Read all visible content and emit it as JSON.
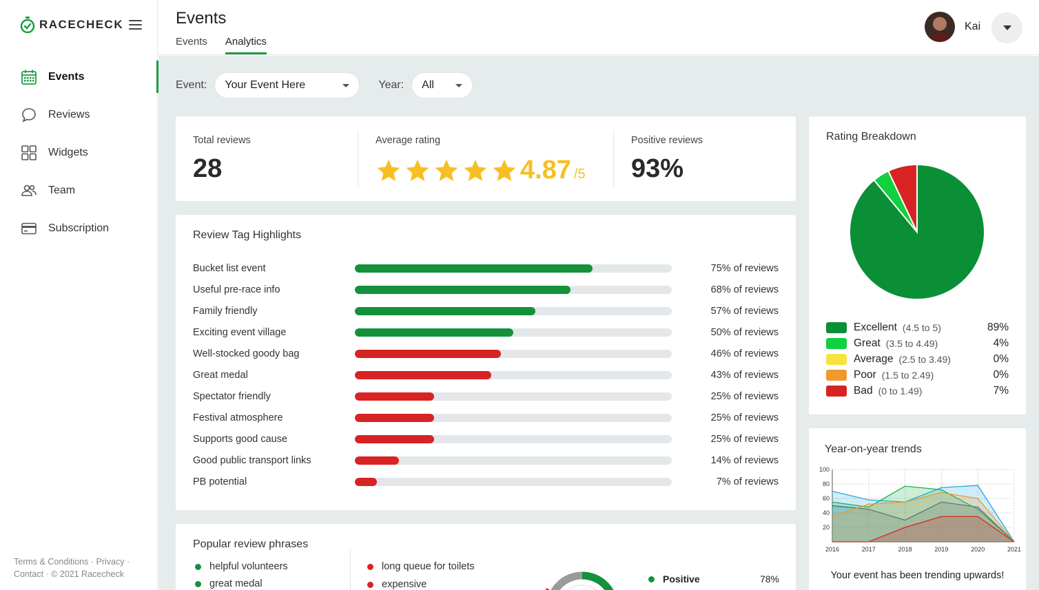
{
  "brand": {
    "name": "RACECHECK",
    "accent": "#1a9d43"
  },
  "sidebar": {
    "items": [
      {
        "label": "Events",
        "icon": "calendar-icon",
        "active": true
      },
      {
        "label": "Reviews",
        "icon": "chat-bubble-icon",
        "active": false
      },
      {
        "label": "Widgets",
        "icon": "grid-icon",
        "active": false
      },
      {
        "label": "Team",
        "icon": "people-icon",
        "active": false
      },
      {
        "label": "Subscription",
        "icon": "credit-card-icon",
        "active": false
      }
    ],
    "footer": {
      "terms": "Terms & Conditions",
      "privacy": "Privacy",
      "contact": "Contact",
      "copyright": "© 2021 Racecheck"
    }
  },
  "header": {
    "title": "Events",
    "tabs": [
      {
        "label": "Events",
        "active": false
      },
      {
        "label": "Analytics",
        "active": true
      }
    ],
    "user": {
      "name": "Kai"
    }
  },
  "filters": {
    "event_label": "Event:",
    "event_value": "Your Event Here",
    "year_label": "Year:",
    "year_value": "All"
  },
  "stats": {
    "total_reviews_label": "Total reviews",
    "total_reviews": "28",
    "average_rating_label": "Average rating",
    "average_rating": "4.87",
    "rating_scale": "/5",
    "stars": 5,
    "positive_reviews_label": "Positive reviews",
    "positive_reviews": "93%"
  },
  "tag_highlights": {
    "title": "Review Tag Highlights",
    "items": [
      {
        "label": "Bucket list event",
        "pct": 75,
        "text": "75% of reviews",
        "sentiment": "positive"
      },
      {
        "label": "Useful pre-race info",
        "pct": 68,
        "text": "68% of reviews",
        "sentiment": "positive"
      },
      {
        "label": "Family friendly",
        "pct": 57,
        "text": "57% of reviews",
        "sentiment": "positive"
      },
      {
        "label": "Exciting event village",
        "pct": 50,
        "text": "50% of reviews",
        "sentiment": "positive"
      },
      {
        "label": "Well-stocked goody bag",
        "pct": 46,
        "text": "46% of reviews",
        "sentiment": "negative"
      },
      {
        "label": "Great medal",
        "pct": 43,
        "text": "43% of reviews",
        "sentiment": "negative"
      },
      {
        "label": "Spectator friendly",
        "pct": 25,
        "text": "25% of reviews",
        "sentiment": "negative"
      },
      {
        "label": "Festival atmosphere",
        "pct": 25,
        "text": "25% of reviews",
        "sentiment": "negative"
      },
      {
        "label": "Supports good cause",
        "pct": 25,
        "text": "25% of reviews",
        "sentiment": "negative"
      },
      {
        "label": "Good public transport links",
        "pct": 14,
        "text": "14% of reviews",
        "sentiment": "negative"
      },
      {
        "label": "PB potential",
        "pct": 7,
        "text": "7% of reviews",
        "sentiment": "negative"
      }
    ],
    "colors": {
      "positive": "#13913b",
      "negative": "#d72323"
    }
  },
  "phrases": {
    "title": "Popular review phrases",
    "positive": [
      "helpful volunteers",
      "great medal"
    ],
    "negative": [
      "long queue for toilets",
      "expensive"
    ],
    "legend": [
      {
        "label": "Positive",
        "value": "78%",
        "color": "#13913b"
      }
    ]
  },
  "rating_breakdown": {
    "title": "Rating Breakdown",
    "rows": [
      {
        "label": "Excellent",
        "range": "(4.5 to 5)",
        "pct": "89%",
        "color": "#0a8f37"
      },
      {
        "label": "Great",
        "range": "(3.5 to 4.49)",
        "pct": "4%",
        "color": "#0fd13e"
      },
      {
        "label": "Average",
        "range": "(2.5 to 3.49)",
        "pct": "0%",
        "color": "#f8e33c"
      },
      {
        "label": "Poor",
        "range": "(1.5 to 2.49)",
        "pct": "0%",
        "color": "#ee9a2d"
      },
      {
        "label": "Bad",
        "range": "(0 to 1.49)",
        "pct": "7%",
        "color": "#d72323"
      }
    ]
  },
  "trends": {
    "title": "Year-on-year trends",
    "message": "Your event has been trending upwards!"
  },
  "chart_data": [
    {
      "type": "pie",
      "title": "Rating Breakdown",
      "categories": [
        "Excellent",
        "Great",
        "Average",
        "Poor",
        "Bad"
      ],
      "values": [
        89,
        4,
        0,
        0,
        7
      ],
      "colors": [
        "#0a8f37",
        "#0fd13e",
        "#f8e33c",
        "#ee9a2d",
        "#d72323"
      ]
    },
    {
      "type": "area",
      "title": "Year-on-year trends",
      "x": [
        "2016",
        "2017",
        "2018",
        "2019",
        "2020",
        "2021"
      ],
      "ylim": [
        0,
        100
      ],
      "yticks": [
        20,
        40,
        60,
        80,
        100
      ],
      "series": [
        {
          "color": "#29a8e0",
          "values": [
            70,
            58,
            55,
            75,
            78,
            0
          ]
        },
        {
          "color": "#3a5aa8",
          "values": [
            50,
            45,
            30,
            55,
            48,
            0
          ]
        },
        {
          "color": "#19b04a",
          "values": [
            55,
            48,
            77,
            72,
            45,
            0
          ]
        },
        {
          "color": "#ee9a2d",
          "values": [
            35,
            52,
            55,
            68,
            60,
            0
          ]
        },
        {
          "color": "#d72323",
          "values": [
            0,
            0,
            20,
            35,
            35,
            0
          ]
        }
      ]
    },
    {
      "type": "pie",
      "title": "Popular review phrases",
      "categories": [
        "Positive"
      ],
      "values": [
        78
      ],
      "colors": [
        "#13913b"
      ]
    }
  ]
}
